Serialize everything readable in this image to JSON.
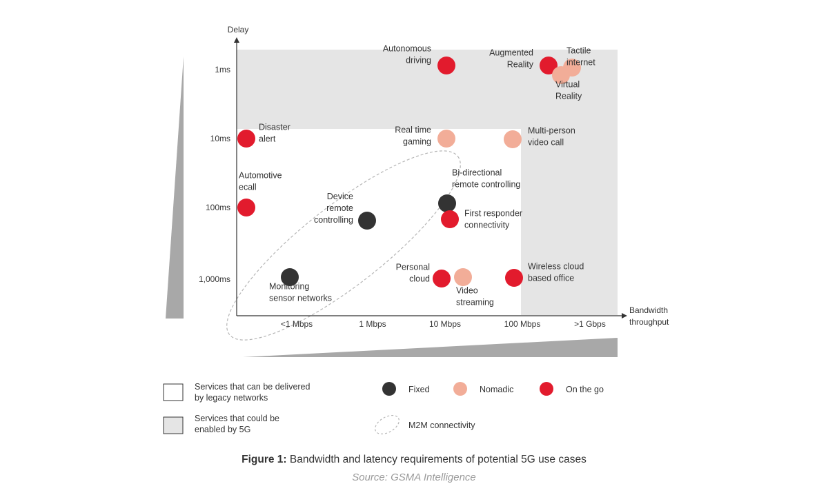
{
  "chart_data": {
    "type": "scatter",
    "xlabel": [
      "Bandwidth",
      "throughput"
    ],
    "ylabel": "Delay",
    "x_categories": [
      "<1 Mbps",
      "1 Mbps",
      "10 Mbps",
      "100 Mbps",
      ">1 Gbps"
    ],
    "y_categories": [
      "1ms",
      "10ms",
      "100ms",
      "1,000ms"
    ],
    "points": [
      {
        "label": [
          "Autonomous",
          "driving"
        ],
        "type": "on-the-go",
        "x": "10 Mbps",
        "y": "1ms"
      },
      {
        "label": [
          "Augmented",
          "Reality"
        ],
        "type": "on-the-go",
        "x": "100 Mbps",
        "y": "1ms"
      },
      {
        "label": [
          "Tactile",
          "internet"
        ],
        "type": "nomadic",
        "x": ">1 Gbps",
        "y": "1ms"
      },
      {
        "label": [
          "Virtual",
          "Reality"
        ],
        "type": "nomadic",
        "x": ">1 Gbps",
        "y": "1ms"
      },
      {
        "label": [
          "Disaster",
          "alert"
        ],
        "type": "on-the-go",
        "x": "<1 Mbps",
        "y": "10ms"
      },
      {
        "label": [
          "Real time",
          "gaming"
        ],
        "type": "nomadic",
        "x": "10 Mbps",
        "y": "10ms"
      },
      {
        "label": [
          "Multi-person",
          "video call"
        ],
        "type": "nomadic",
        "x": "100 Mbps",
        "y": "10ms"
      },
      {
        "label": [
          "Automotive",
          "ecall"
        ],
        "type": "on-the-go",
        "x": "<1 Mbps",
        "y": "100ms"
      },
      {
        "label": [
          "Device",
          "remote",
          "controlling"
        ],
        "type": "fixed",
        "x": "1 Mbps",
        "y": "100ms"
      },
      {
        "label": [
          "Bi-directional",
          "remote controlling"
        ],
        "type": "fixed",
        "x": "10 Mbps",
        "y": "100ms"
      },
      {
        "label": [
          "First responder",
          "connectivity"
        ],
        "type": "on-the-go",
        "x": "10 Mbps",
        "y": "100ms"
      },
      {
        "label": [
          "Monitoring",
          "sensor networks"
        ],
        "type": "fixed",
        "x": "<1 Mbps",
        "y": "1,000ms"
      },
      {
        "label": [
          "Personal",
          "cloud"
        ],
        "type": "on-the-go",
        "x": "10 Mbps",
        "y": "1,000ms"
      },
      {
        "label": [
          "Video",
          "streaming"
        ],
        "type": "nomadic",
        "x": "10 Mbps",
        "y": "1,000ms"
      },
      {
        "label": [
          "Wireless cloud",
          "based office"
        ],
        "type": "on-the-go",
        "x": "100 Mbps",
        "y": "1,000ms"
      }
    ],
    "legend": {
      "legacy": [
        "Services that can be delivered",
        "by legacy networks"
      ],
      "fiveg": [
        "Services that could be",
        "enabled by 5G"
      ],
      "fixed": "Fixed",
      "nomadic": "Nomadic",
      "on_the_go": "On the go",
      "m2m": "M2M connectivity"
    },
    "colors": {
      "fixed": "#333333",
      "nomadic": "#f2ad98",
      "on_the_go": "#e21b2d",
      "shade_5g": "#e5e5e5",
      "wedge": "#a8a8a8"
    }
  },
  "caption": {
    "prefix": "Figure 1:",
    "text": " Bandwidth and latency requirements of potential 5G use cases",
    "source": "Source: GSMA Intelligence"
  }
}
